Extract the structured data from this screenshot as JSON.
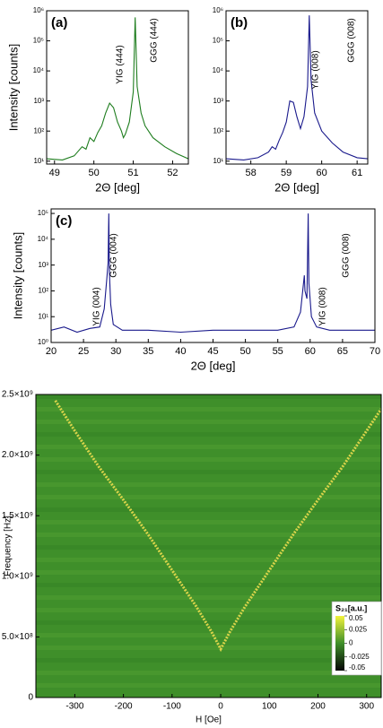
{
  "chart_data": [
    {
      "type": "line",
      "panel_label": "(a)",
      "xlabel": "2Θ [deg]",
      "ylabel": "Intensity [counts]",
      "log_y": true,
      "xlim": [
        48.8,
        52.4
      ],
      "xticks": [
        49,
        50,
        51,
        52
      ],
      "ylim": [
        8,
        1000000
      ],
      "yticks": [
        {
          "value": 10,
          "label": "10¹"
        },
        {
          "value": 100,
          "label": "10²"
        },
        {
          "value": 1000,
          "label": "10³"
        },
        {
          "value": 10000,
          "label": "10⁴"
        },
        {
          "value": 100000,
          "label": "10⁵"
        },
        {
          "value": 1000000,
          "label": "10⁶"
        }
      ],
      "annotations": [
        "YIG (444)",
        "GGG (444)"
      ],
      "series": [
        {
          "color": "#1e7d1e",
          "x": [
            48.8,
            49.2,
            49.5,
            49.7,
            49.8,
            49.9,
            50.0,
            50.1,
            50.2,
            50.3,
            50.4,
            50.5,
            50.6,
            50.7,
            50.75,
            50.8,
            50.9,
            51.0,
            51.05,
            51.1,
            51.2,
            51.3,
            51.5,
            51.8,
            52.1,
            52.4
          ],
          "values": [
            12,
            11,
            15,
            30,
            25,
            60,
            45,
            90,
            150,
            400,
            850,
            600,
            200,
            100,
            60,
            80,
            200,
            2000,
            600000,
            3000,
            400,
            150,
            60,
            30,
            18,
            12
          ]
        }
      ]
    },
    {
      "type": "line",
      "panel_label": "(b)",
      "xlabel": "2Θ [deg]",
      "log_y": true,
      "xlim": [
        57.3,
        61.3
      ],
      "xticks": [
        58,
        59,
        60,
        61
      ],
      "ylim": [
        8,
        1000000
      ],
      "yticks": [
        {
          "value": 10,
          "label": "10¹"
        },
        {
          "value": 100,
          "label": "10²"
        },
        {
          "value": 1000,
          "label": "10³"
        },
        {
          "value": 10000,
          "label": "10⁴"
        },
        {
          "value": 100000,
          "label": "10⁵"
        },
        {
          "value": 1000000,
          "label": "10⁶"
        }
      ],
      "annotations": [
        "YIG (008)",
        "GGG (008)"
      ],
      "series": [
        {
          "color": "#1a1a8c",
          "x": [
            57.3,
            57.8,
            58.2,
            58.5,
            58.6,
            58.7,
            58.8,
            58.9,
            59.0,
            59.1,
            59.2,
            59.3,
            59.4,
            59.5,
            59.6,
            59.65,
            59.7,
            59.8,
            60.0,
            60.3,
            60.6,
            61.0,
            61.3
          ],
          "values": [
            12,
            11,
            13,
            20,
            30,
            25,
            50,
            90,
            200,
            1000,
            900,
            300,
            120,
            300,
            3000,
            700000,
            5000,
            400,
            100,
            40,
            20,
            13,
            12
          ]
        }
      ]
    },
    {
      "type": "line",
      "panel_label": "(c)",
      "xlabel": "2Θ [deg]",
      "ylabel": "Intensity [counts]",
      "log_y": true,
      "xlim": [
        20,
        70
      ],
      "xticks": [
        20,
        25,
        30,
        35,
        40,
        45,
        50,
        55,
        60,
        65,
        70
      ],
      "ylim": [
        1,
        150000
      ],
      "yticks": [
        {
          "value": 1,
          "label": "10⁰"
        },
        {
          "value": 10,
          "label": "10¹"
        },
        {
          "value": 100,
          "label": "10²"
        },
        {
          "value": 1000,
          "label": "10³"
        },
        {
          "value": 10000,
          "label": "10⁴"
        },
        {
          "value": 100000,
          "label": "10⁵"
        }
      ],
      "annotations": [
        "YIG (004)",
        "GGG (004)",
        "YIG (008)",
        "GGG (008)"
      ],
      "series": [
        {
          "color": "#1a1a8c",
          "x": [
            20,
            22,
            24,
            26,
            27.5,
            28.2,
            28.6,
            28.8,
            28.9,
            29.0,
            29.2,
            29.6,
            31,
            35,
            40,
            45,
            50,
            55,
            57.5,
            58.5,
            59.1,
            59.2,
            59.5,
            59.7,
            59.8,
            60.2,
            61,
            63,
            66,
            70
          ],
          "values": [
            3,
            4,
            2.5,
            3.5,
            4,
            20,
            300,
            1200,
            100000,
            500,
            30,
            5,
            3,
            3,
            2.5,
            3,
            3,
            3,
            4,
            15,
            400,
            100,
            50,
            100000,
            200,
            10,
            4,
            3,
            3,
            3
          ]
        }
      ]
    },
    {
      "type": "heatmap",
      "xlabel": "H [Oe]",
      "ylabel": "Frequency [Hz]",
      "xlim": [
        -380,
        330
      ],
      "xticks": [
        -300,
        -200,
        -100,
        0,
        100,
        200,
        300
      ],
      "ylim": [
        0,
        2500000000
      ],
      "yticks": [
        0,
        {
          "value": 500000000,
          "label": "5.0×10⁸"
        },
        {
          "value": 1000000000,
          "label": "1.0×10⁹"
        },
        {
          "value": 1500000000,
          "label": "1.5×10⁹"
        },
        {
          "value": 2000000000,
          "label": "2.0×10⁹"
        },
        {
          "value": 2500000000,
          "label": "2.5×10⁹"
        }
      ],
      "colorbar": {
        "title": "S₂₁[a.u.]",
        "zlim": [
          -0.05,
          0.05
        ],
        "colors": [
          "#050505",
          "#3f8f2a",
          "#f2f23c"
        ],
        "ticks": [
          0.05,
          0.025,
          0,
          -0.025,
          -0.05
        ]
      },
      "series": [
        {
          "color": "#d9d44a",
          "x": [
            -340,
            -300,
            -250,
            -200,
            -150,
            -100,
            -50,
            -20,
            0,
            20,
            50,
            100,
            150,
            200,
            250,
            300,
            330
          ],
          "values": [
            2450000000,
            2200000000,
            1900000000,
            1630000000,
            1350000000,
            1050000000,
            750000000,
            550000000,
            400000000,
            550000000,
            750000000,
            1050000000,
            1350000000,
            1630000000,
            1900000000,
            2200000000,
            2380000000
          ]
        }
      ]
    }
  ]
}
